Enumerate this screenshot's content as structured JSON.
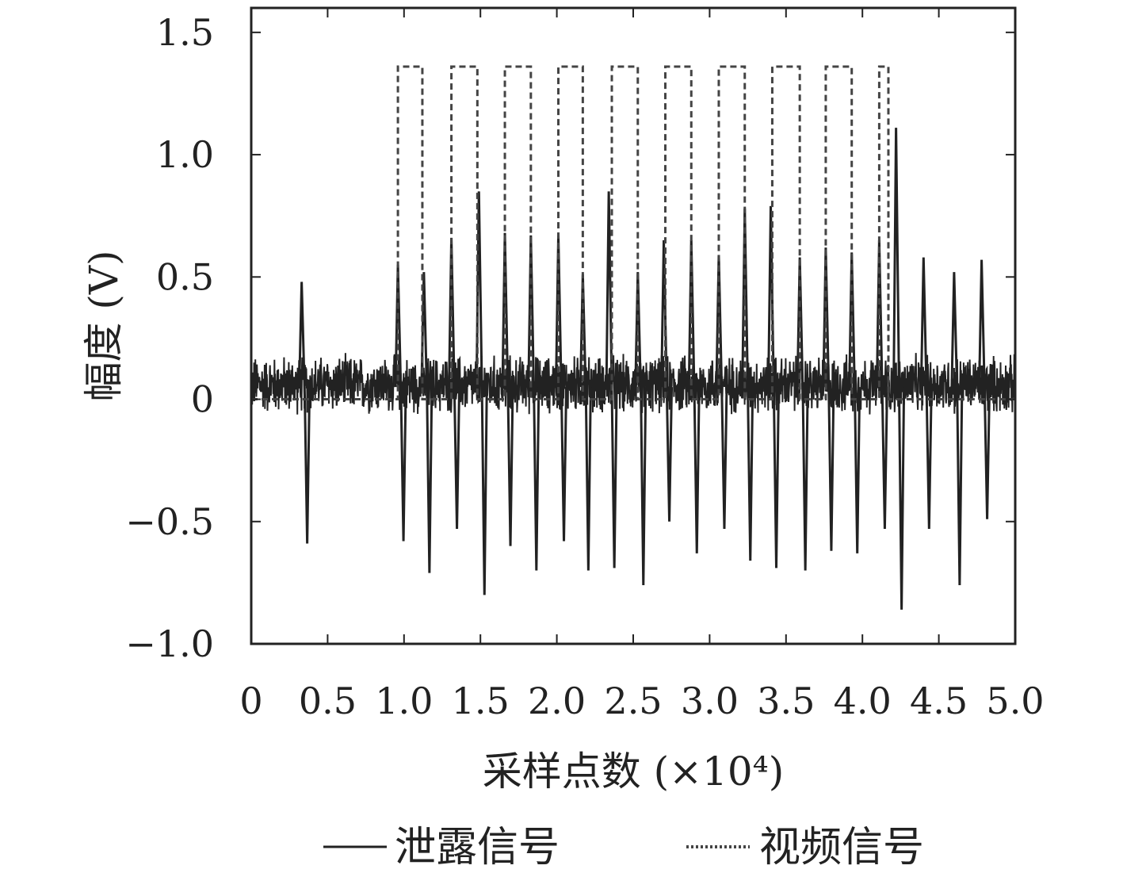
{
  "chart_data": {
    "type": "line",
    "title": "",
    "xlabel": "采样点数 (×10⁴)",
    "ylabel": "幅度 (V)",
    "xlim": [
      0,
      5.0
    ],
    "ylim": [
      -1.0,
      1.6
    ],
    "x_ticks": [
      "0",
      "0.5",
      "1.0",
      "1.5",
      "2.0",
      "2.5",
      "3.0",
      "3.5",
      "4.0",
      "4.5",
      "5.0"
    ],
    "y_ticks": [
      "−1.0",
      "−0.5",
      "0",
      "0.5",
      "1.0",
      "1.5"
    ],
    "x_tick_values": [
      0,
      0.5,
      1.0,
      1.5,
      2.0,
      2.5,
      3.0,
      3.5,
      4.0,
      4.5,
      5.0
    ],
    "y_tick_values": [
      -1.0,
      -0.5,
      0,
      0.5,
      1.0,
      1.5
    ],
    "grid": false,
    "legend_position": "bottom",
    "series": [
      {
        "name": "泄露信号",
        "style": "solid",
        "color": "#222222",
        "noise_amplitude": 0.09,
        "spikes": [
          {
            "x": 0.33,
            "high": 0.48,
            "low": -0.59
          },
          {
            "x": 0.96,
            "high": 0.55,
            "low": -0.58
          },
          {
            "x": 1.13,
            "high": 0.52,
            "low": -0.71
          },
          {
            "x": 1.31,
            "high": 0.66,
            "low": -0.53
          },
          {
            "x": 1.49,
            "high": 0.85,
            "low": -0.8
          },
          {
            "x": 1.66,
            "high": 0.68,
            "low": -0.6
          },
          {
            "x": 1.83,
            "high": 0.67,
            "low": -0.7
          },
          {
            "x": 2.01,
            "high": 0.67,
            "low": -0.58
          },
          {
            "x": 2.17,
            "high": 0.51,
            "low": -0.7
          },
          {
            "x": 2.34,
            "high": 0.85,
            "low": -0.69
          },
          {
            "x": 2.53,
            "high": 0.52,
            "low": -0.76
          },
          {
            "x": 2.7,
            "high": 0.65,
            "low": -0.5
          },
          {
            "x": 2.88,
            "high": 0.65,
            "low": -0.63
          },
          {
            "x": 3.06,
            "high": 0.59,
            "low": -0.53
          },
          {
            "x": 3.23,
            "high": 0.78,
            "low": -0.66
          },
          {
            "x": 3.4,
            "high": 0.79,
            "low": -0.69
          },
          {
            "x": 3.59,
            "high": 0.58,
            "low": -0.7
          },
          {
            "x": 3.76,
            "high": 0.62,
            "low": -0.62
          },
          {
            "x": 3.93,
            "high": 0.6,
            "low": -0.63
          },
          {
            "x": 4.11,
            "high": 0.65,
            "low": -0.53
          },
          {
            "x": 4.22,
            "high": 1.11,
            "low": -0.86
          },
          {
            "x": 4.4,
            "high": 0.58,
            "low": -0.53
          },
          {
            "x": 4.6,
            "high": 0.52,
            "low": -0.76
          },
          {
            "x": 4.78,
            "high": 0.57,
            "low": -0.49
          }
        ]
      },
      {
        "name": "视频信号",
        "style": "dotted",
        "color": "#444444",
        "baseline": 0.0,
        "high_level": 1.36,
        "pulses": [
          [
            0.96,
            1.12
          ],
          [
            1.31,
            1.48
          ],
          [
            1.66,
            1.83
          ],
          [
            2.01,
            2.17
          ],
          [
            2.36,
            2.53
          ],
          [
            2.71,
            2.88
          ],
          [
            3.06,
            3.23
          ],
          [
            3.41,
            3.59
          ],
          [
            3.76,
            3.93
          ],
          [
            4.11,
            4.17
          ]
        ]
      }
    ]
  },
  "legend": {
    "items": [
      {
        "label": "泄露信号",
        "style": "solid"
      },
      {
        "label": "视频信号",
        "style": "dotted"
      }
    ]
  }
}
